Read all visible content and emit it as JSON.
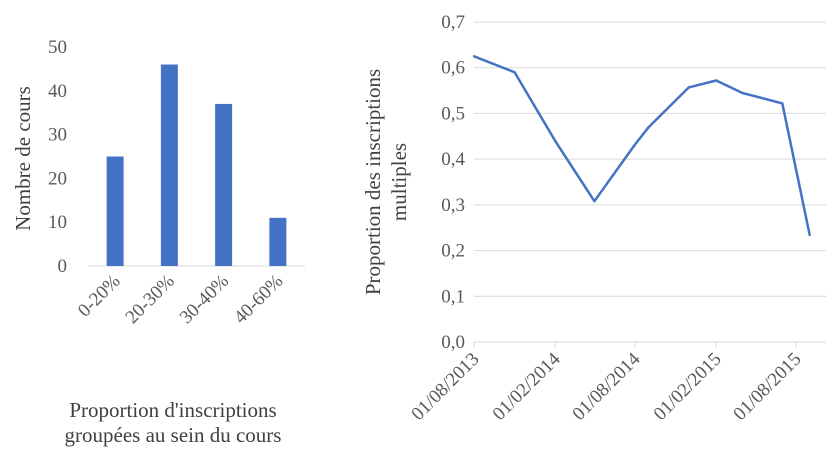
{
  "chart_data": [
    {
      "type": "bar",
      "title": "",
      "categories": [
        "0-20%",
        "20-30%",
        "30-40%",
        "40-60%"
      ],
      "values": [
        25,
        46,
        37,
        11
      ],
      "xlabel": "Proportion d'inscriptions groupées au sein du cours",
      "xlabel_lines": [
        "Proportion d'inscriptions",
        "groupées au sein du cours"
      ],
      "ylabel": "Nombre de cours",
      "ylim": [
        0,
        50
      ],
      "yticks": [
        "0",
        "10",
        "20",
        "30",
        "40",
        "50"
      ],
      "grid": false,
      "bar_color": "#4472C4"
    },
    {
      "type": "line",
      "title": "",
      "x": [
        "2013-08-01",
        "2013-11-01",
        "2014-02-01",
        "2014-05-01",
        "2014-08-01",
        "2014-09-01",
        "2014-12-01",
        "2015-02-01",
        "2015-04-01",
        "2015-07-01",
        "2015-09-01"
      ],
      "values": [
        0.625,
        0.59,
        0.44,
        0.308,
        0.432,
        0.47,
        0.557,
        0.572,
        0.545,
        0.522,
        0.234
      ],
      "xticks": [
        "01/08/2013",
        "01/02/2014",
        "01/08/2014",
        "01/02/2015",
        "01/08/2015"
      ],
      "ylabel": "Proportion des inscriptions multiples",
      "ylabel_lines": [
        "Proportion des inscriptions",
        "multiples"
      ],
      "ylim": [
        0,
        0.7
      ],
      "yticks": [
        "0,0",
        "0,1",
        "0,2",
        "0,3",
        "0,4",
        "0,5",
        "0,6",
        "0,7"
      ],
      "grid": true,
      "line_color": "#4472C4"
    }
  ]
}
